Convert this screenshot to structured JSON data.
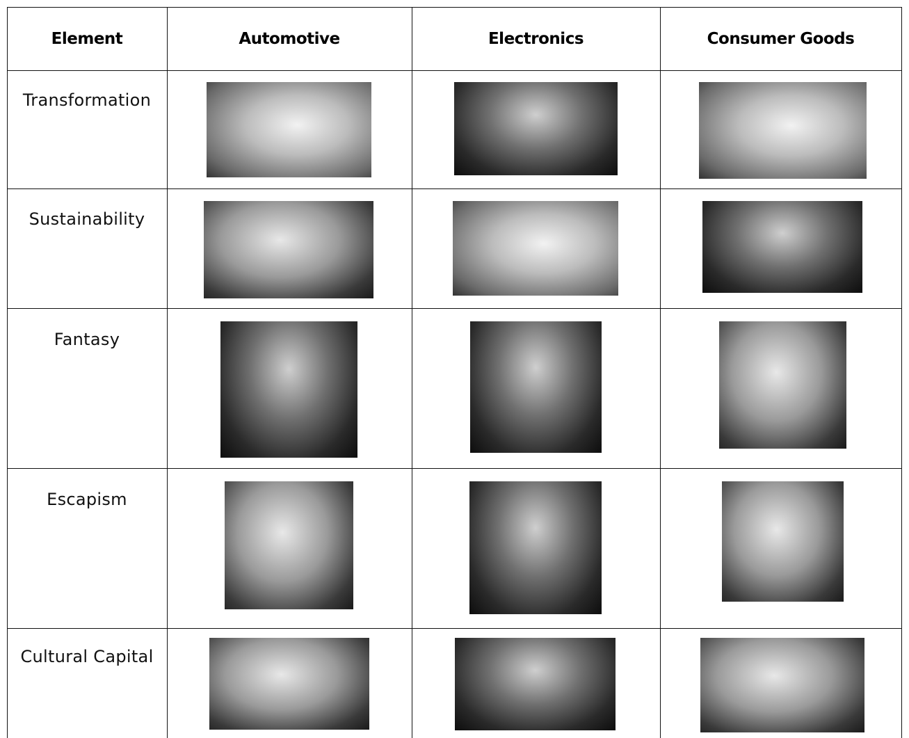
{
  "table": {
    "header": [
      "Element",
      "Automotive",
      "Electronics",
      "Consumer Goods"
    ],
    "rows": [
      [
        "Transformation"
      ],
      [
        "Sustainability"
      ],
      [
        "Fantasy"
      ],
      [
        "Escapism"
      ],
      [
        "Cultural Capital"
      ]
    ]
  }
}
